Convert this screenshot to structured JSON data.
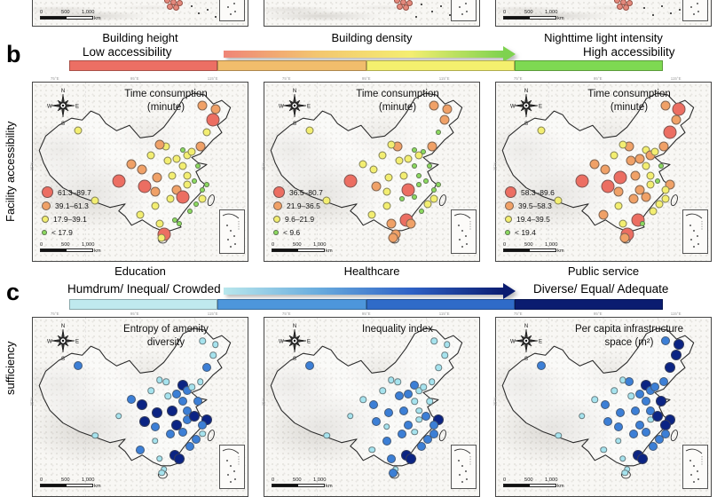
{
  "panel_a": {
    "maps": [
      {
        "caption": "Building height"
      },
      {
        "caption": "Building density"
      },
      {
        "caption": "Nighttime light intensity"
      }
    ]
  },
  "panel_b": {
    "letter": "b",
    "side_label": "Facility accessibility",
    "arrow_left_label": "Low accessibility",
    "arrow_right_label": "High accessibility",
    "arrow_gradient": [
      "#ef8577",
      "#f3c66f",
      "#f4ee70",
      "#7ed24f"
    ],
    "arrow_head_color": "#7ed24f",
    "colorbar_colors": [
      "#ec6f64",
      "#f1bd6c",
      "#f4f06e",
      "#7ed952"
    ],
    "map_title_line1": "Time consumption",
    "map_title_line2": "(minute)",
    "class_colors": [
      "#ec6e62",
      "#f0a167",
      "#f3ee71",
      "#8cda5f"
    ],
    "class_sizes": [
      15,
      11,
      9,
      6
    ],
    "legend_dot_sizes": [
      13,
      10,
      8,
      6
    ],
    "maps": [
      {
        "caption": "Education",
        "legend": [
          "61.3–89.7",
          "39.1–61.3",
          "17.9–39.1",
          "< 17.9"
        ],
        "classes": [
          2,
          2,
          0,
          1,
          1,
          2,
          2,
          1,
          1,
          1,
          0,
          2,
          1,
          3,
          2,
          2,
          2,
          2,
          2,
          3,
          2,
          2,
          1,
          1,
          2,
          3,
          3,
          3,
          2,
          0,
          2,
          0,
          1,
          2,
          2,
          2,
          3,
          3,
          3,
          3,
          0,
          2
        ]
      },
      {
        "caption": "Healthcare",
        "legend": [
          "36.5–80.7",
          "21.9–36.5",
          "9.6–21.9",
          "< 9.6"
        ],
        "classes": [
          2,
          2,
          0,
          2,
          2,
          2,
          1,
          2,
          1,
          1,
          1,
          3,
          1,
          3,
          2,
          3,
          2,
          2,
          3,
          3,
          2,
          3,
          2,
          0,
          3,
          3,
          3,
          3,
          2,
          3,
          3,
          1,
          2,
          2,
          2,
          1,
          0,
          1,
          3,
          2,
          1,
          1
        ]
      },
      {
        "caption": "Public service",
        "legend": [
          "58.3–89.6",
          "39.5–58.3",
          "19.4–39.5",
          "< 19.4"
        ],
        "classes": [
          2,
          2,
          0,
          1,
          1,
          2,
          1,
          2,
          1,
          0,
          1,
          0,
          1,
          2,
          1,
          2,
          1,
          1,
          2,
          3,
          1,
          2,
          0,
          1,
          2,
          3,
          1,
          2,
          2,
          1,
          1,
          0,
          1,
          2,
          1,
          2,
          0,
          3,
          2,
          2,
          0,
          1
        ]
      }
    ]
  },
  "panel_c": {
    "letter": "c",
    "side_label": "sufficiency",
    "arrow_left_label": "Humdrum/ Inequal/ Crowded",
    "arrow_right_label": "Diverse/ Equal/ Adequate",
    "arrow_gradient": [
      "#b9e7ec",
      "#6aadde",
      "#2f62c6",
      "#0a1c70"
    ],
    "arrow_head_color": "#0a1c70",
    "colorbar_colors": [
      "#bfe9ee",
      "#4d96db",
      "#2f6bc8",
      "#0a1c70"
    ],
    "class_colors": [
      "#0b2484",
      "#3c7fd6",
      "#a6e3ee"
    ],
    "class_sizes": [
      12,
      10,
      7.5
    ],
    "maps": [
      {
        "title_line1": "Entropy of amenity",
        "title_line2": "diversity",
        "classes": [
          1,
          2,
          2,
          1,
          0,
          2,
          2,
          2,
          2,
          2,
          2,
          1,
          2,
          0,
          1,
          2,
          1,
          2,
          1,
          1,
          0,
          1,
          0,
          0,
          1,
          0,
          0,
          1,
          2,
          1,
          1,
          0,
          1,
          2,
          1,
          2,
          0,
          0,
          1,
          1,
          2,
          2
        ]
      },
      {
        "title_line1": "Inequality index",
        "title_line2": "",
        "classes": [
          1,
          2,
          2,
          2,
          1,
          2,
          2,
          2,
          2,
          2,
          2,
          2,
          2,
          1,
          2,
          2,
          1,
          1,
          2,
          2,
          1,
          2,
          1,
          1,
          2,
          1,
          0,
          1,
          1,
          2,
          1,
          1,
          2,
          1,
          2,
          1,
          0,
          0,
          1,
          1,
          2,
          1
        ]
      },
      {
        "title_line1": "Per capita infrastructure",
        "title_line2": "space (m²)",
        "classes": [
          1,
          2,
          2,
          2,
          1,
          2,
          1,
          2,
          1,
          0,
          0,
          0,
          1,
          0,
          1,
          1,
          1,
          2,
          1,
          0,
          1,
          1,
          1,
          1,
          2,
          0,
          0,
          0,
          1,
          1,
          1,
          1,
          1,
          2,
          2,
          2,
          0,
          0,
          1,
          1,
          2,
          2
        ]
      }
    ]
  },
  "cities": [
    [
      21,
      27
    ],
    [
      29,
      66
    ],
    [
      40,
      55
    ],
    [
      46,
      46
    ],
    [
      51,
      49
    ],
    [
      55,
      41
    ],
    [
      62,
      36
    ],
    [
      59,
      35
    ],
    [
      79,
      13
    ],
    [
      85,
      15
    ],
    [
      84,
      21
    ],
    [
      81,
      28
    ],
    [
      78,
      36
    ],
    [
      70,
      38
    ],
    [
      72,
      41
    ],
    [
      74,
      39
    ],
    [
      67,
      43
    ],
    [
      63,
      44
    ],
    [
      70,
      47
    ],
    [
      77,
      47
    ],
    [
      65,
      52
    ],
    [
      72,
      52
    ],
    [
      58,
      53
    ],
    [
      67,
      60
    ],
    [
      72,
      57
    ],
    [
      75,
      55
    ],
    [
      81,
      57
    ],
    [
      79,
      60
    ],
    [
      79,
      65
    ],
    [
      70,
      64
    ],
    [
      64,
      65
    ],
    [
      52,
      58
    ],
    [
      57,
      61
    ],
    [
      57,
      69
    ],
    [
      50,
      74
    ],
    [
      59,
      79
    ],
    [
      66,
      77
    ],
    [
      68,
      79
    ],
    [
      73,
      72
    ],
    [
      76,
      68
    ],
    [
      61,
      85
    ],
    [
      60,
      87
    ]
  ],
  "scalebar": {
    "labels": [
      "0",
      "500",
      "1,000"
    ],
    "unit": "km"
  },
  "compass": {
    "n": "N",
    "s": "S",
    "e": "E",
    "w": "W"
  },
  "ticks": {
    "top": [
      "75°E",
      "95°E",
      "115°E"
    ],
    "left": "35°N"
  }
}
